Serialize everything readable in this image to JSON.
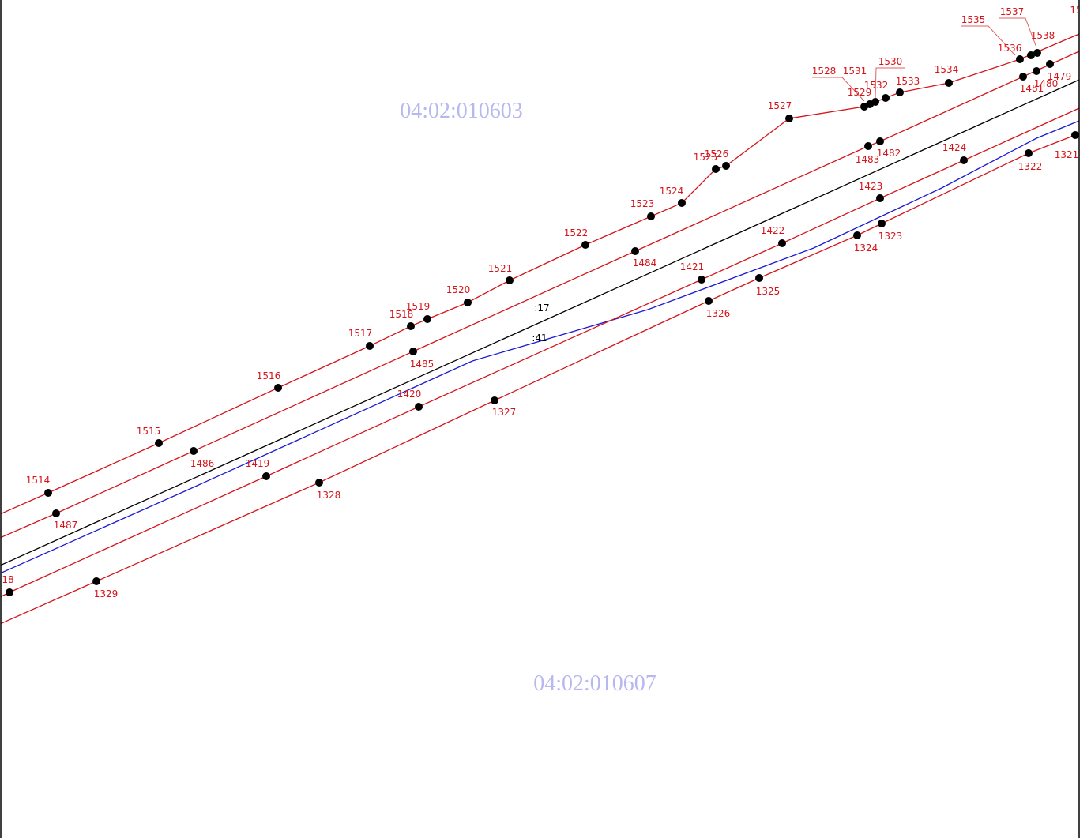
{
  "parcels": [
    "04:02:010603",
    "04:02:010607"
  ],
  "boundary_labels": [
    ":17",
    ":41"
  ],
  "points": [
    "1514",
    "1487",
    "1515",
    "1486",
    "1516",
    "1517",
    "1518",
    "1519",
    "1485",
    "1520",
    "1521",
    "1522",
    "1484",
    "1523",
    "1524",
    "1525",
    "1526",
    "1527",
    "1528",
    "1529",
    "1531",
    "1530",
    "1532",
    "1533",
    "1534",
    "1535",
    "1536",
    "1537",
    "1538",
    "1479",
    "1480",
    "1481",
    "1482",
    "1483",
    "1424",
    "1423",
    "1422",
    "1421",
    "1420",
    "1419",
    "18",
    "1322",
    "1321",
    "1323",
    "1324",
    "1325",
    "1326",
    "1327",
    "1328",
    "1329",
    "15"
  ]
}
